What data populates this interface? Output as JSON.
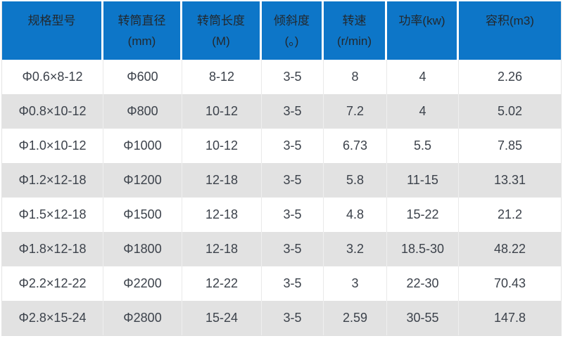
{
  "table": {
    "columns": [
      {
        "label": "规格型号",
        "unit": ""
      },
      {
        "label": "转筒直径",
        "unit": "(mm)"
      },
      {
        "label": "转筒长度",
        "unit": "(M)"
      },
      {
        "label": "倾斜度",
        "unit": "(。)"
      },
      {
        "label": "转速",
        "unit": "(r/min)"
      },
      {
        "label": "功率(kw)",
        "unit": ""
      },
      {
        "label": "容积(m3)",
        "unit": ""
      }
    ],
    "rows": [
      [
        "Φ0.6×8-12",
        "Φ600",
        "8-12",
        "3-5",
        "8",
        "4",
        "2.26"
      ],
      [
        "Φ0.8×10-12",
        "Φ800",
        "10-12",
        "3-5",
        "7.2",
        "4",
        "5.02"
      ],
      [
        "Φ1.0×10-12",
        "Φ1000",
        "10-12",
        "3-5",
        "6.73",
        "5.5",
        "7.85"
      ],
      [
        "Φ1.2×12-18",
        "Φ1200",
        "12-18",
        "3-5",
        "5.8",
        "11-15",
        "13.31"
      ],
      [
        "Φ1.5×12-18",
        "Φ1500",
        "12-18",
        "3-5",
        "4.8",
        "15-22",
        "21.2"
      ],
      [
        "Φ1.8×12-18",
        "Φ1800",
        "12-18",
        "3-5",
        "3.2",
        "18.5-30",
        "48.22"
      ],
      [
        "Φ2.2×12-22",
        "Φ2200",
        "12-22",
        "3-5",
        "3",
        "22-30",
        "70.43"
      ],
      [
        "Φ2.8×15-24",
        "Φ2800",
        "15-24",
        "3-5",
        "2.59",
        "30-55",
        "147.8"
      ]
    ],
    "colors": {
      "header_bg": "#0d76c8",
      "header_text": "#23282d",
      "body_text": "#3c424b",
      "row_alt_bg": "#e2e2e2",
      "border": "#e9e9e9"
    }
  }
}
